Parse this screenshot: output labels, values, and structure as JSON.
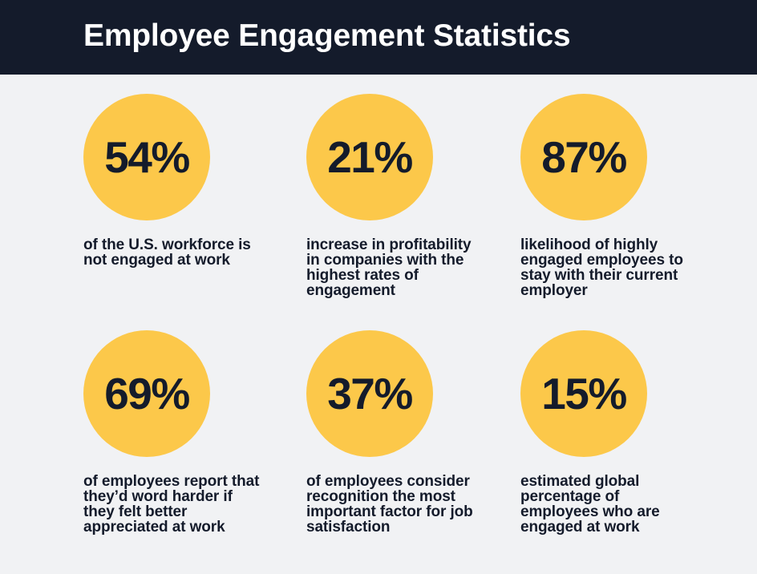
{
  "title": "Employee Engagement Statistics",
  "colors": {
    "header_background": "#141b2b",
    "page_background": "#f1f2f4",
    "circle_fill": "#fcc84a",
    "text_dark": "#141b2b",
    "title_text": "#ffffff"
  },
  "stats": [
    {
      "value": "54%",
      "description": "of the U.S. workforce is not engaged at work"
    },
    {
      "value": "21%",
      "description": "increase in profitability in companies with the highest rates of engagement"
    },
    {
      "value": "87%",
      "description": "likelihood of highly engaged employees to stay with their current employer"
    },
    {
      "value": "69%",
      "description": "of employees report that they’d word harder if they felt better appreciated at work"
    },
    {
      "value": "37%",
      "description": "of employees consider recognition the most important factor for job satisfaction"
    },
    {
      "value": "15%",
      "description": "estimated global percentage of employees who are engaged at work"
    }
  ]
}
